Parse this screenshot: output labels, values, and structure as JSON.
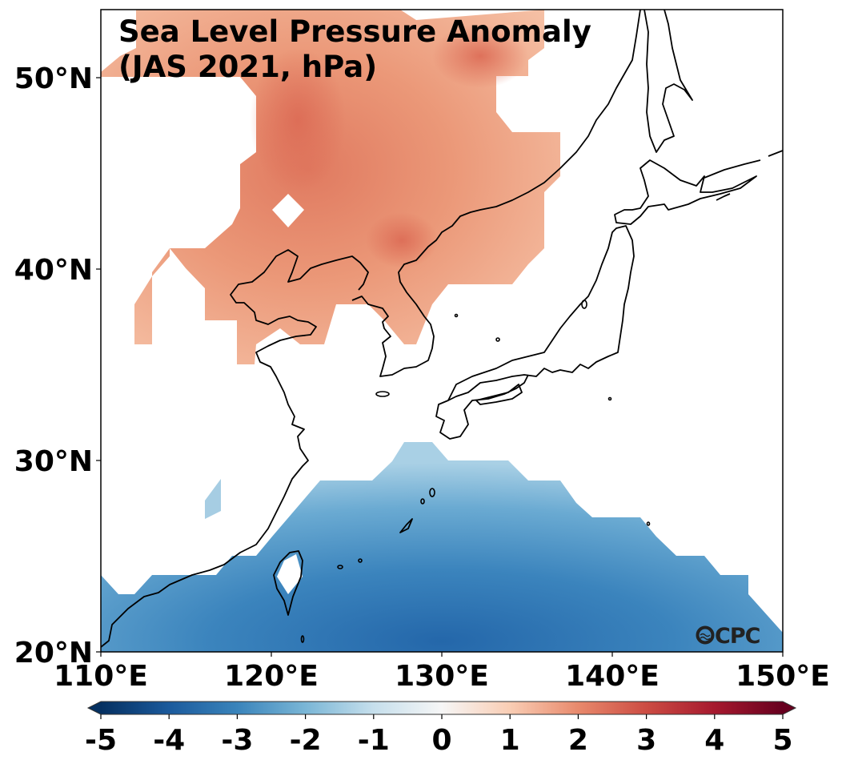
{
  "map": {
    "title_line1": "Sea Level Pressure Anomaly",
    "title_line2": "(JAS 2021, hPa)",
    "variable": "Sea Level Pressure Anomaly",
    "period": "JAS 2021",
    "units": "hPa",
    "region": {
      "lon_range": [
        110,
        150
      ],
      "lat_range": [
        20,
        53
      ]
    },
    "x_ticks": [
      {
        "value": 110,
        "label": "110°E"
      },
      {
        "value": 120,
        "label": "120°E"
      },
      {
        "value": 130,
        "label": "130°E"
      },
      {
        "value": 140,
        "label": "140°E"
      },
      {
        "value": 150,
        "label": "150°E"
      }
    ],
    "y_ticks": [
      {
        "value": 20,
        "label": "20°N"
      },
      {
        "value": 30,
        "label": "30°N"
      },
      {
        "value": 40,
        "label": "40°N"
      },
      {
        "value": 50,
        "label": "50°N"
      }
    ],
    "logo": "CPC",
    "features": [
      {
        "name": "positive-anomaly-north",
        "description": "Positive SLP anomaly over NE China / Korea / Russian Far East",
        "approx_max": 2.5,
        "center_lonlat": [
          127.5,
          41.5
        ]
      },
      {
        "name": "negative-anomaly-south",
        "description": "Negative SLP anomaly over western North Pacific south of Japan",
        "approx_min": -3.5,
        "center_lonlat": [
          130,
          21
        ]
      }
    ]
  },
  "colorbar": {
    "colormap": "RdBu_r",
    "min": -5,
    "max": 5,
    "extend": "both",
    "ticks": [
      {
        "value": -5,
        "label": "-5"
      },
      {
        "value": -4,
        "label": "-4"
      },
      {
        "value": -3,
        "label": "-3"
      },
      {
        "value": -2,
        "label": "-2"
      },
      {
        "value": -1,
        "label": "-1"
      },
      {
        "value": 0,
        "label": "0"
      },
      {
        "value": 1,
        "label": "1"
      },
      {
        "value": 2,
        "label": "2"
      },
      {
        "value": 3,
        "label": "3"
      },
      {
        "value": 4,
        "label": "4"
      },
      {
        "value": 5,
        "label": "5"
      }
    ],
    "stops": [
      {
        "value": -5,
        "color": "#053061"
      },
      {
        "value": -4,
        "color": "#1b5a9c"
      },
      {
        "value": -3,
        "color": "#3a84bb"
      },
      {
        "value": -2,
        "color": "#7ab6d6"
      },
      {
        "value": -1,
        "color": "#c6dfec"
      },
      {
        "value": 0,
        "color": "#f6f6f6"
      },
      {
        "value": 1,
        "color": "#f9cdb4"
      },
      {
        "value": 2,
        "color": "#e8896c"
      },
      {
        "value": 3,
        "color": "#cc4c43"
      },
      {
        "value": 4,
        "color": "#a6192e"
      },
      {
        "value": 5,
        "color": "#67001f"
      }
    ]
  }
}
